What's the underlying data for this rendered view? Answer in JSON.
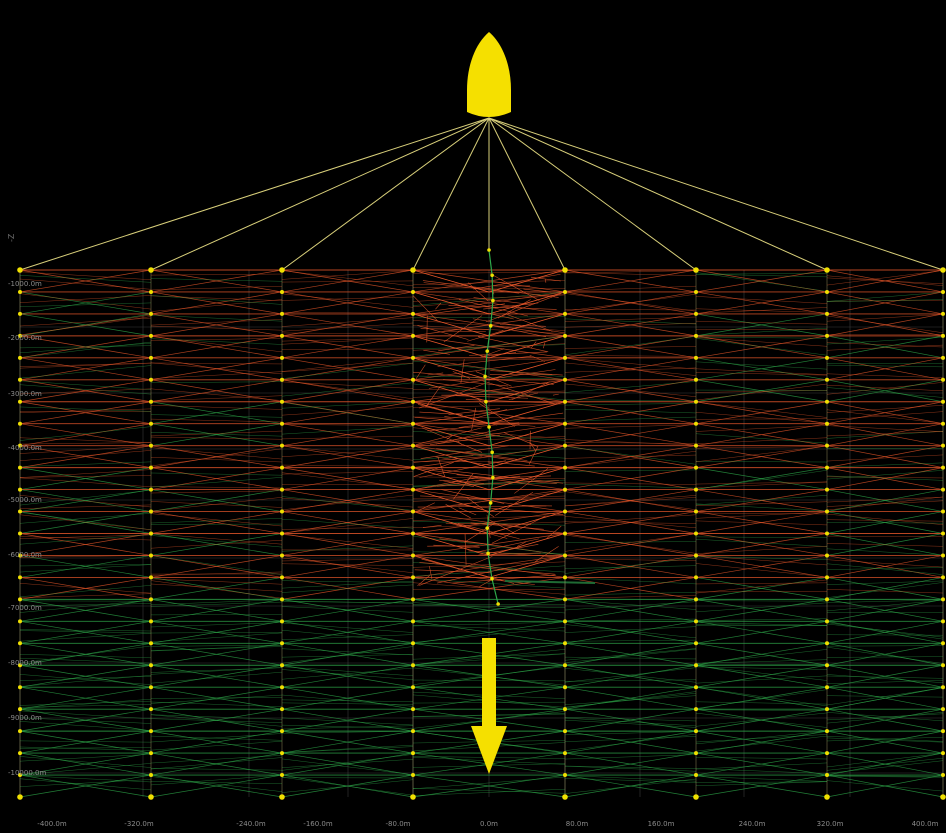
{
  "colors": {
    "background": "#000000",
    "vessel": "#f5e000",
    "tow_line": "#d8cf7a",
    "active_mesh": "#e8572a",
    "mesh": "#2ea84a",
    "node": "#f0e000",
    "arrow": "#f5e000",
    "grid": "#3a3a3a"
  },
  "icons": {
    "vessel": "ship-icon",
    "direction": "arrow-down-icon"
  },
  "axis": {
    "z_label": "-Z",
    "depth_ticks": [
      "-1000.0m",
      "-2000.0m",
      "-3000.0m",
      "-4000.0m",
      "-5000.0m",
      "-6000.0m",
      "-7000.0m",
      "-8000.0m",
      "-9000.0m",
      "-10000.0m"
    ],
    "offset_ticks": [
      "-400.0m",
      "-320.0m",
      "-240.0m",
      "-160.0m",
      "-80.0m",
      "0.0m",
      "80.0m",
      "160.0m",
      "240.0m",
      "320.0m",
      "400.0m"
    ]
  }
}
